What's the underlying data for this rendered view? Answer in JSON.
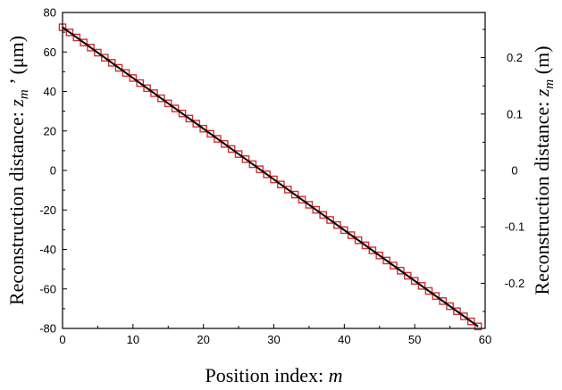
{
  "chart_data": {
    "type": "scatter",
    "xlabel": "Position index:",
    "xlabel_var": "m",
    "ylabel_left": {
      "prefix": "Reconstruction distance: ",
      "var": "z",
      "sub": "m",
      "prime": " ’ ",
      "unit": "(μm)"
    },
    "ylabel_right": {
      "prefix": "Reconstruction distance: ",
      "var": "z",
      "sub": "m",
      "unit": "(m)"
    },
    "xlim": [
      0,
      60
    ],
    "ylim_left": [
      -80,
      80
    ],
    "ylim_right": [
      -0.28,
      0.28
    ],
    "x_ticks": [
      0,
      10,
      20,
      30,
      40,
      50,
      60
    ],
    "x_tick_labels": [
      "0",
      "10",
      "20",
      "30",
      "40",
      "50",
      "60"
    ],
    "y_ticks_left": [
      -80,
      -60,
      -40,
      -20,
      0,
      20,
      40,
      60,
      80
    ],
    "y_tick_labels_left": [
      "-80",
      "-60",
      "-40",
      "-20",
      "0",
      "20",
      "40",
      "60",
      "80"
    ],
    "y_ticks_right": [
      -0.2,
      -0.1,
      0,
      0.1,
      0.2
    ],
    "y_tick_labels_right": [
      "-0.2",
      "-0.1",
      "0",
      "0.1",
      "0.2"
    ],
    "grid": false,
    "series": [
      {
        "kind": "markers",
        "marker": "square-open",
        "color": "#d0302f",
        "x_start": 0,
        "x_end": 59,
        "x_step": 1,
        "y_start": 72.5,
        "y_end": -79
      },
      {
        "kind": "line",
        "color": "#000000",
        "x": [
          0,
          59
        ],
        "y": [
          72.5,
          -79
        ]
      }
    ]
  }
}
